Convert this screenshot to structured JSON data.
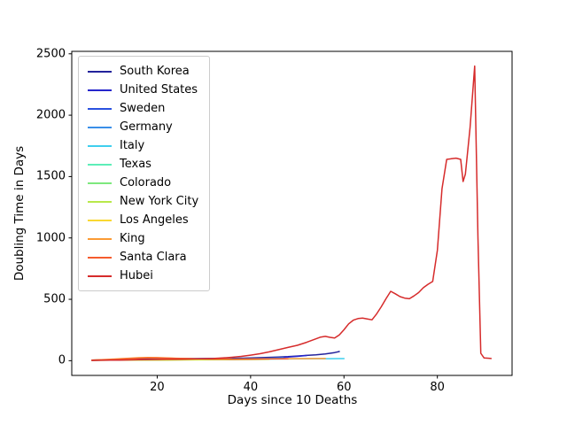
{
  "chart_data": {
    "type": "line",
    "title": "",
    "xlabel": "Days since 10 Deaths",
    "ylabel": "Doubling Time in Days",
    "xlim": [
      1.7,
      96
    ],
    "ylim": [
      -120,
      2520
    ],
    "xticks": [
      20,
      40,
      60,
      80
    ],
    "yticks": [
      0,
      500,
      1000,
      1500,
      2000,
      2500
    ],
    "grid": false,
    "legend_position": "upper left",
    "line_width": 1.5,
    "series": [
      {
        "name": "South Korea",
        "color": "#22229b",
        "x": [
          6,
          8,
          10,
          12,
          14,
          16,
          18,
          20,
          24,
          28,
          32,
          36,
          40,
          44,
          46,
          48,
          50,
          52,
          54,
          56,
          58,
          59
        ],
        "y": [
          4,
          6,
          8,
          10,
          12,
          13,
          14,
          15,
          16,
          17,
          18,
          19,
          22,
          27,
          30,
          33,
          38,
          43,
          48,
          55,
          66,
          75
        ]
      },
      {
        "name": "United States",
        "color": "#2626cc",
        "x": [
          6,
          8,
          10,
          14,
          18,
          22,
          26,
          30,
          34,
          38,
          40,
          42,
          44,
          46,
          48,
          50,
          52
        ],
        "y": [
          3,
          4,
          5,
          6,
          7,
          8,
          8,
          9,
          10,
          12,
          14,
          16,
          19,
          24,
          29,
          35,
          42
        ]
      },
      {
        "name": "Sweden",
        "color": "#2a52e0",
        "x": [
          6,
          8,
          10,
          14,
          18,
          22,
          26,
          30,
          34,
          38,
          42,
          44,
          46
        ],
        "y": [
          3,
          4,
          5,
          6,
          8,
          9,
          10,
          11,
          12,
          13,
          15,
          16,
          17
        ]
      },
      {
        "name": "Germany",
        "color": "#3a8fe8",
        "x": [
          6,
          8,
          10,
          14,
          18,
          22,
          26,
          30,
          34,
          38,
          42,
          45,
          47
        ],
        "y": [
          4,
          5,
          6,
          7,
          8,
          9,
          10,
          11,
          12,
          14,
          17,
          20,
          23
        ]
      },
      {
        "name": "Italy",
        "color": "#3fcfee",
        "x": [
          6,
          8,
          10,
          14,
          18,
          22,
          26,
          30,
          34,
          38,
          42,
          46,
          50,
          54,
          57,
          60
        ],
        "y": [
          3,
          4,
          5,
          6,
          7,
          8,
          9,
          10,
          11,
          12,
          13,
          14,
          15,
          16,
          16,
          17
        ]
      },
      {
        "name": "Texas",
        "color": "#5ceeb8",
        "x": [
          6,
          8,
          10,
          14,
          18,
          22,
          26,
          30,
          33
        ],
        "y": [
          4,
          5,
          6,
          7,
          8,
          9,
          10,
          11,
          12
        ]
      },
      {
        "name": "Colorado",
        "color": "#7de87d",
        "x": [
          6,
          8,
          10,
          14,
          18,
          22,
          26,
          30,
          34
        ],
        "y": [
          5,
          6,
          7,
          8,
          9,
          10,
          11,
          12,
          13
        ]
      },
      {
        "name": "New York City",
        "color": "#b8e84a",
        "x": [
          6,
          8,
          10,
          14,
          18,
          22,
          26,
          30,
          34,
          38,
          41,
          44
        ],
        "y": [
          3,
          3,
          4,
          4,
          5,
          5,
          6,
          7,
          8,
          9,
          10,
          11
        ]
      },
      {
        "name": "Los Angeles",
        "color": "#fad832",
        "x": [
          6,
          8,
          10,
          14,
          18,
          22,
          26,
          30,
          33,
          36
        ],
        "y": [
          4,
          5,
          6,
          7,
          8,
          9,
          10,
          11,
          12,
          13
        ]
      },
      {
        "name": "King",
        "color": "#fb9b34",
        "x": [
          6,
          8,
          10,
          12,
          14,
          16,
          18,
          20,
          22,
          24,
          26,
          28,
          32,
          36,
          40,
          44,
          48,
          52,
          56
        ],
        "y": [
          5,
          8,
          12,
          16,
          20,
          24,
          26,
          25,
          22,
          20,
          18,
          16,
          14,
          13,
          14,
          15,
          16,
          17,
          18
        ]
      },
      {
        "name": "Santa Clara",
        "color": "#f55c2e",
        "x": [
          6,
          8,
          10,
          12,
          14,
          16,
          18,
          20,
          22,
          24,
          26,
          28,
          32,
          36,
          40,
          44,
          48
        ],
        "y": [
          4,
          6,
          9,
          13,
          17,
          20,
          22,
          23,
          21,
          19,
          17,
          15,
          13,
          12,
          13,
          14,
          15
        ]
      },
      {
        "name": "Hubei",
        "color": "#d62b2b",
        "x": [
          6,
          8,
          10,
          12,
          14,
          16,
          18,
          20,
          22,
          24,
          26,
          28,
          30,
          32,
          34,
          36,
          38,
          40,
          42,
          44,
          46,
          48,
          50,
          52,
          54,
          55,
          56,
          57,
          58,
          59,
          60,
          61,
          62,
          63,
          64,
          65,
          66,
          67,
          68,
          69,
          70,
          71,
          72,
          73,
          74,
          75,
          76,
          77,
          78,
          79,
          80,
          81,
          82,
          83,
          84,
          85,
          85.5,
          86,
          87,
          88,
          88.7,
          89.3,
          90,
          91,
          91.5
        ],
        "y": [
          2,
          3,
          4,
          5,
          6,
          8,
          9,
          10,
          11,
          12,
          13,
          14,
          16,
          18,
          22,
          28,
          35,
          45,
          57,
          72,
          90,
          108,
          125,
          150,
          178,
          192,
          198,
          190,
          185,
          210,
          252,
          300,
          330,
          343,
          347,
          340,
          333,
          382,
          440,
          505,
          565,
          545,
          522,
          510,
          505,
          528,
          555,
          595,
          622,
          645,
          900,
          1400,
          1640,
          1645,
          1650,
          1640,
          1460,
          1520,
          1900,
          2400,
          1000,
          60,
          22,
          20,
          18
        ]
      }
    ]
  },
  "axis_text": {
    "x_tick_labels": [
      "20",
      "40",
      "60",
      "80"
    ],
    "y_tick_labels": [
      "0",
      "500",
      "1000",
      "1500",
      "2000",
      "2500"
    ]
  },
  "colors": {
    "background": "#ffffff",
    "spine": "#000000",
    "text": "#000000",
    "legend_border": "#cccccc"
  }
}
